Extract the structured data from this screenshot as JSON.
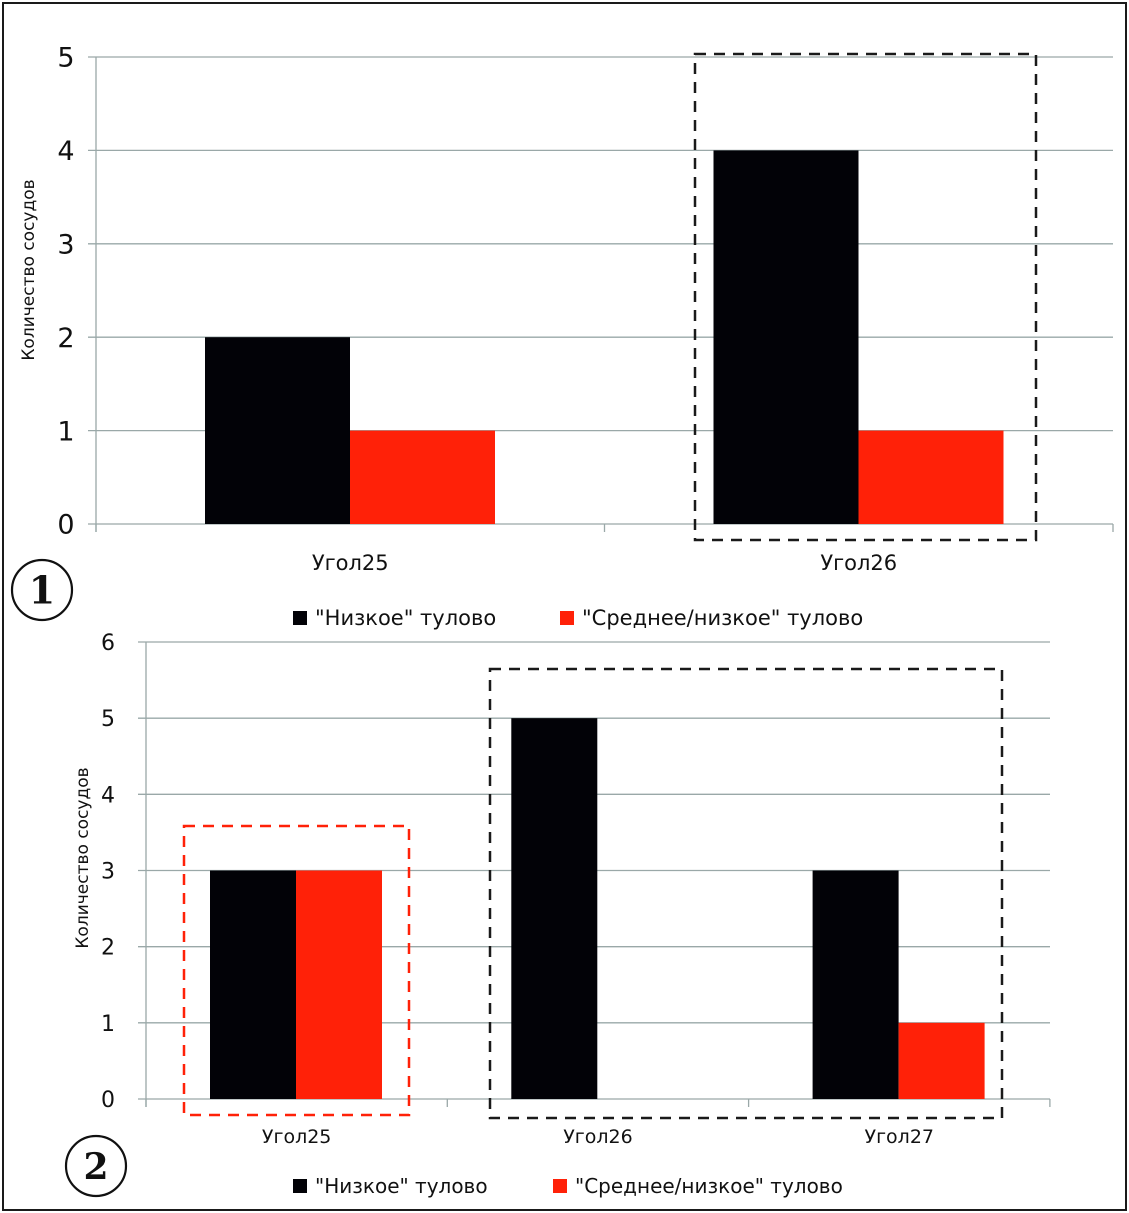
{
  "chart_data": [
    {
      "id": "chart1",
      "type": "bar",
      "badge": "1",
      "categories": [
        "Угол25",
        "Угол26"
      ],
      "series": [
        {
          "name": "\"Низкое\" тулово",
          "color": "#020207",
          "values": [
            2,
            4
          ]
        },
        {
          "name": "\"Среднее/низкое\" тулово",
          "color": "#ff2108",
          "values": [
            1,
            1
          ]
        }
      ],
      "ylabel": "Количество сосудов",
      "xlabel": "",
      "ylim": [
        0,
        5
      ],
      "yticks": [
        "0",
        "1",
        "2",
        "3",
        "4",
        "5"
      ],
      "grid": true,
      "legend": "bottom",
      "highlights": [
        {
          "category": "Угол26",
          "color": "#1a1a1a",
          "style": "dashed"
        }
      ]
    },
    {
      "id": "chart2",
      "type": "bar",
      "badge": "2",
      "categories": [
        "Угол25",
        "Угол26",
        "Угол27"
      ],
      "series": [
        {
          "name": "\"Низкое\" тулово",
          "color": "#020207",
          "values": [
            3,
            5,
            3
          ]
        },
        {
          "name": "\"Среднее/низкое\" тулово",
          "color": "#ff2108",
          "values": [
            3,
            0,
            1
          ]
        }
      ],
      "ylabel": "Количество сосудов",
      "xlabel": "",
      "ylim": [
        0,
        6
      ],
      "yticks": [
        "0",
        "1",
        "2",
        "3",
        "4",
        "5",
        "6"
      ],
      "grid": true,
      "legend": "bottom",
      "highlights": [
        {
          "category": "Угол25",
          "color": "#ff2108",
          "style": "dashed"
        },
        {
          "category": "Угол26–Угол27",
          "color": "#1a1a1a",
          "style": "dashed"
        }
      ]
    }
  ]
}
